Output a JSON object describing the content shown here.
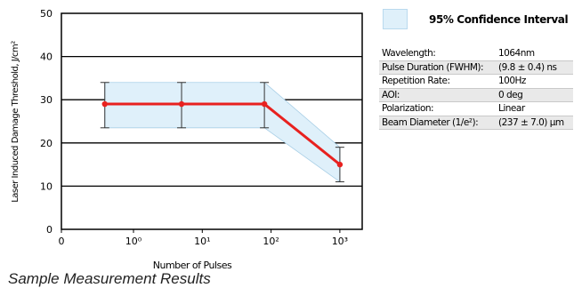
{
  "chart_data": {
    "type": "line",
    "title": "",
    "xlabel": "Number of Pulses",
    "ylabel": "Laser Induced Damage Threshold, J/cm²",
    "x_scale": "log",
    "x_tick_labels": [
      {
        "label": "0",
        "value": 0
      },
      {
        "label": "10⁰",
        "value": 1
      },
      {
        "label": "10¹",
        "value": 10
      },
      {
        "label": "10²",
        "value": 100
      },
      {
        "label": "10³",
        "value": 1000
      }
    ],
    "ylim": [
      0,
      50
    ],
    "y_ticks": [
      0,
      10,
      20,
      30,
      40,
      50
    ],
    "grid": "horizontal",
    "series": [
      {
        "color": "#e8211f",
        "points": [
          {
            "x": 0.4,
            "y": 29,
            "lower": 23.5,
            "upper": 34
          },
          {
            "x": 5,
            "y": 29,
            "lower": 23.5,
            "upper": 34
          },
          {
            "x": 80,
            "y": 29,
            "lower": 23.5,
            "upper": 34
          },
          {
            "x": 1000,
            "y": 15,
            "lower": 11,
            "upper": 19
          }
        ]
      }
    ],
    "band_color": "#dff0fa",
    "legend": {
      "label": "95% Confidence Interval",
      "position": "top-right"
    }
  },
  "parameters": [
    {
      "key": "Wavelength:",
      "value": "1064nm"
    },
    {
      "key": "Pulse Duration (FWHM):",
      "value": "(9.8 ± 0.4) ns"
    },
    {
      "key": "Repetition Rate:",
      "value": "100Hz"
    },
    {
      "key": "AOI:",
      "value": "0 deg"
    },
    {
      "key": "Polarization:",
      "value": "Linear"
    },
    {
      "key": "Beam Diameter (1/e²):",
      "value": "(237 ± 7.0) µm"
    }
  ],
  "caption": "Sample Measurement Results"
}
